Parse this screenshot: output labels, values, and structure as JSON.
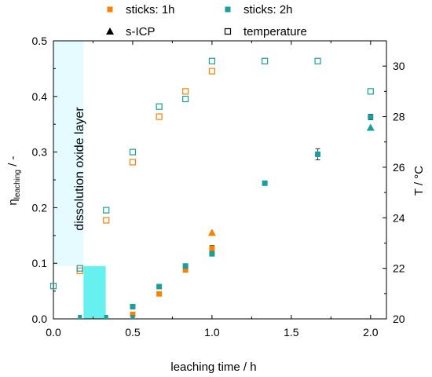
{
  "chart_data": {
    "type": "scatter",
    "x_axis": {
      "label": "leaching time / h",
      "range": [
        0,
        2.1
      ],
      "ticks": [
        0.0,
        0.5,
        1.0,
        1.5,
        2.0
      ],
      "tick_labels": [
        "0.0",
        "0.5",
        "1.0",
        "1.5",
        "2.0"
      ]
    },
    "y_left": {
      "label_main": "η",
      "label_sub": "leaching",
      "label_suffix": " / -",
      "range": [
        0,
        0.5
      ],
      "ticks": [
        0.0,
        0.1,
        0.2,
        0.3,
        0.4,
        0.5
      ],
      "tick_labels": [
        "0.0",
        "0.1",
        "0.2",
        "0.3",
        "0.4",
        "0.5"
      ]
    },
    "y_right": {
      "label": "T / °C",
      "range": [
        20,
        31
      ],
      "ticks": [
        20,
        22,
        24,
        26,
        28,
        30
      ],
      "tick_labels": [
        "20",
        "22",
        "24",
        "26",
        "28",
        "30"
      ]
    },
    "legend_position": "top",
    "annotation": "dissolution oxide layer",
    "shaded_regions": [
      {
        "x": [
          0,
          0.19
        ],
        "y": [
          0.095,
          0.5
        ],
        "color": "#e6fbff"
      },
      {
        "x": [
          0.19,
          0.33
        ],
        "y": [
          0,
          0.095
        ],
        "color": "#66f0f0"
      }
    ],
    "series": [
      {
        "name": "sticks: 1h",
        "marker": "filled-square",
        "axis": "left",
        "color": "#ff8000",
        "points": [
          {
            "x": 0.5,
            "y": 0.008,
            "err": 0.003
          },
          {
            "x": 0.667,
            "y": 0.045,
            "err": 0.003
          },
          {
            "x": 0.833,
            "y": 0.088,
            "err": 0.003
          },
          {
            "x": 1.0,
            "y": 0.127,
            "err": 0.005
          }
        ]
      },
      {
        "name": "sticks: 2h",
        "marker": "filled-square",
        "axis": "left",
        "color": "#1a9e9e",
        "points": [
          {
            "x": 0.5,
            "y": 0.022,
            "err": 0.003
          },
          {
            "x": 0.667,
            "y": 0.058,
            "err": 0.003
          },
          {
            "x": 0.833,
            "y": 0.095,
            "err": 0.003
          },
          {
            "x": 1.0,
            "y": 0.117,
            "err": 0.004
          },
          {
            "x": 1.333,
            "y": 0.244,
            "err": 0.003
          },
          {
            "x": 1.667,
            "y": 0.296,
            "err": 0.01
          },
          {
            "x": 2.0,
            "y": 0.363,
            "err": 0.005
          }
        ]
      },
      {
        "name": "s-ICP",
        "marker": "filled-triangle",
        "axis": "left",
        "legend_color": "#000000",
        "points": [
          {
            "x": 1.0,
            "y": 0.155,
            "color": "#ff8000"
          },
          {
            "x": 2.0,
            "y": 0.344,
            "color": "#1a9e9e"
          }
        ]
      },
      {
        "name": "temperature",
        "marker": "open-square",
        "axis": "right",
        "legend_color": "#000000",
        "points": [
          {
            "x": 0.0,
            "y": 21.3,
            "color": "#1a9e9e"
          },
          {
            "x": 0.167,
            "y": 21.9,
            "color": "#ff8000"
          },
          {
            "x": 0.167,
            "y": 22.0,
            "color": "#1a9e9e"
          },
          {
            "x": 0.333,
            "y": 23.9,
            "color": "#ff8000"
          },
          {
            "x": 0.333,
            "y": 24.3,
            "color": "#1a9e9e"
          },
          {
            "x": 0.5,
            "y": 26.2,
            "color": "#ff8000"
          },
          {
            "x": 0.5,
            "y": 26.6,
            "color": "#1a9e9e"
          },
          {
            "x": 0.667,
            "y": 28.0,
            "color": "#ff8000"
          },
          {
            "x": 0.667,
            "y": 28.4,
            "color": "#1a9e9e"
          },
          {
            "x": 0.833,
            "y": 29.0,
            "color": "#ff8000"
          },
          {
            "x": 0.833,
            "y": 28.7,
            "color": "#1a9e9e"
          },
          {
            "x": 1.0,
            "y": 29.8,
            "color": "#ff8000"
          },
          {
            "x": 1.0,
            "y": 30.2,
            "color": "#1a9e9e"
          },
          {
            "x": 1.333,
            "y": 30.2,
            "color": "#1a9e9e"
          },
          {
            "x": 1.667,
            "y": 30.2,
            "color": "#1a9e9e"
          },
          {
            "x": 2.0,
            "y": 29.0,
            "color": "#1a9e9e"
          }
        ]
      }
    ]
  }
}
